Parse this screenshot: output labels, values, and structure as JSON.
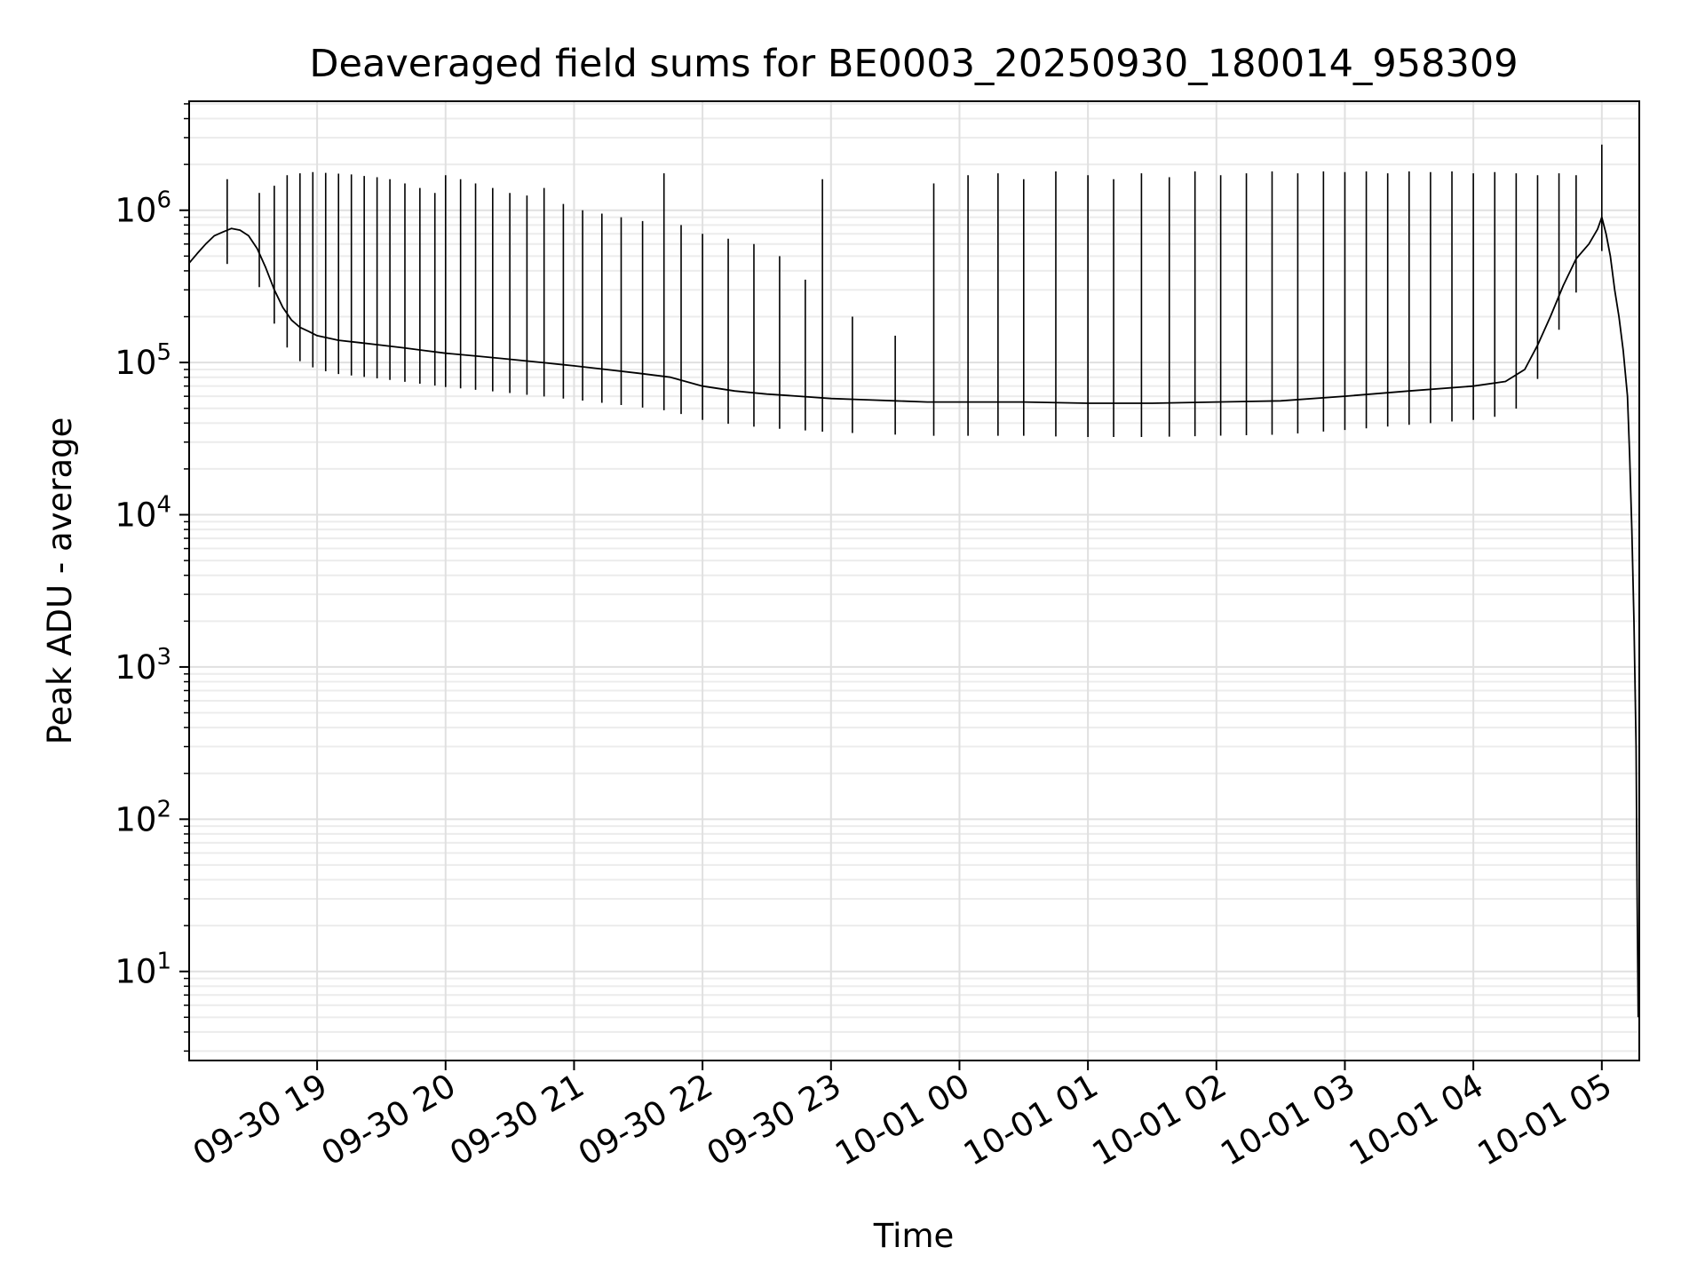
{
  "chart_data": {
    "type": "line",
    "title": "Deaveraged field sums for BE0003_20250930_180014_958309",
    "xlabel": "Time",
    "ylabel": "Peak ADU - average",
    "x_scale": "time",
    "y_scale": "log",
    "xlim": [
      "2025-09-30T18:00:14",
      "2025-10-01T05:17:30"
    ],
    "ylim": [
      2.6,
      5200000
    ],
    "grid": true,
    "legend": "none",
    "line_color": "#000000",
    "x_ticks": [
      {
        "value": "2025-09-30T19:00:00",
        "label": "09-30 19"
      },
      {
        "value": "2025-09-30T20:00:00",
        "label": "09-30 20"
      },
      {
        "value": "2025-09-30T21:00:00",
        "label": "09-30 21"
      },
      {
        "value": "2025-09-30T22:00:00",
        "label": "09-30 22"
      },
      {
        "value": "2025-09-30T23:00:00",
        "label": "09-30 23"
      },
      {
        "value": "2025-10-01T00:00:00",
        "label": "10-01 00"
      },
      {
        "value": "2025-10-01T01:00:00",
        "label": "10-01 01"
      },
      {
        "value": "2025-10-01T02:00:00",
        "label": "10-01 02"
      },
      {
        "value": "2025-10-01T03:00:00",
        "label": "10-01 03"
      },
      {
        "value": "2025-10-01T04:00:00",
        "label": "10-01 04"
      },
      {
        "value": "2025-10-01T05:00:00",
        "label": "10-01 05"
      }
    ],
    "y_ticks": [
      {
        "value": 10,
        "base": "10",
        "exp": "1"
      },
      {
        "value": 100,
        "base": "10",
        "exp": "2"
      },
      {
        "value": 1000,
        "base": "10",
        "exp": "3"
      },
      {
        "value": 10000,
        "base": "10",
        "exp": "4"
      },
      {
        "value": 100000,
        "base": "10",
        "exp": "5"
      },
      {
        "value": 1000000,
        "base": "10",
        "exp": "6"
      }
    ],
    "series": [
      {
        "x": [
          "2025-09-30T18:00:14",
          "2025-09-30T18:04:00",
          "2025-09-30T18:08:00",
          "2025-09-30T18:12:00",
          "2025-09-30T18:16:00",
          "2025-09-30T18:20:00",
          "2025-09-30T18:24:00",
          "2025-09-30T18:28:00",
          "2025-09-30T18:32:00",
          "2025-09-30T18:36:00",
          "2025-09-30T18:40:00",
          "2025-09-30T18:44:00",
          "2025-09-30T18:48:00",
          "2025-09-30T18:52:00",
          "2025-09-30T18:56:00",
          "2025-09-30T19:00:00",
          "2025-09-30T19:10:00",
          "2025-09-30T19:20:00",
          "2025-09-30T19:30:00",
          "2025-09-30T19:40:00",
          "2025-09-30T19:50:00",
          "2025-09-30T20:00:00",
          "2025-09-30T20:15:00",
          "2025-09-30T20:30:00",
          "2025-09-30T20:45:00",
          "2025-09-30T21:00:00",
          "2025-09-30T21:15:00",
          "2025-09-30T21:30:00",
          "2025-09-30T21:45:00",
          "2025-09-30T22:00:00",
          "2025-09-30T22:15:00",
          "2025-09-30T22:30:00",
          "2025-09-30T22:45:00",
          "2025-09-30T23:00:00",
          "2025-09-30T23:15:00",
          "2025-09-30T23:30:00",
          "2025-09-30T23:45:00",
          "2025-10-01T00:00:00",
          "2025-10-01T00:30:00",
          "2025-10-01T01:00:00",
          "2025-10-01T01:30:00",
          "2025-10-01T02:00:00",
          "2025-10-01T02:30:00",
          "2025-10-01T03:00:00",
          "2025-10-01T03:30:00",
          "2025-10-01T04:00:00",
          "2025-10-01T04:15:00",
          "2025-10-01T04:24:00",
          "2025-10-01T04:30:00",
          "2025-10-01T04:36:00",
          "2025-10-01T04:42:00",
          "2025-10-01T04:48:00",
          "2025-10-01T04:54:00",
          "2025-10-01T04:58:00",
          "2025-10-01T05:00:00",
          "2025-10-01T05:02:00",
          "2025-10-01T05:04:00",
          "2025-10-01T05:06:00",
          "2025-10-01T05:08:00",
          "2025-10-01T05:10:00",
          "2025-10-01T05:12:00",
          "2025-10-01T05:13:00",
          "2025-10-01T05:14:00",
          "2025-10-01T05:15:00",
          "2025-10-01T05:16:00",
          "2025-10-01T05:16:30",
          "2025-10-01T05:17:00"
        ],
        "y": [
          450000,
          520000,
          600000,
          680000,
          720000,
          760000,
          740000,
          680000,
          560000,
          420000,
          300000,
          230000,
          190000,
          170000,
          160000,
          150000,
          140000,
          135000,
          130000,
          125000,
          120000,
          115000,
          110000,
          105000,
          100000,
          95000,
          90000,
          85000,
          80000,
          70000,
          65000,
          62000,
          60000,
          58000,
          57000,
          56000,
          55000,
          55000,
          55000,
          54000,
          54000,
          55000,
          56000,
          60000,
          65000,
          70000,
          75000,
          90000,
          130000,
          200000,
          320000,
          480000,
          600000,
          750000,
          900000,
          700000,
          500000,
          300000,
          200000,
          120000,
          60000,
          25000,
          8000,
          2000,
          300,
          30,
          5
        ],
        "spikes": [
          {
            "x": "2025-09-30T18:18:00",
            "y": 1600000
          },
          {
            "x": "2025-09-30T18:33:00",
            "y": 1300000
          },
          {
            "x": "2025-09-30T18:40:00",
            "y": 1450000
          },
          {
            "x": "2025-09-30T18:46:00",
            "y": 1700000
          },
          {
            "x": "2025-09-30T18:52:00",
            "y": 1750000
          },
          {
            "x": "2025-09-30T18:58:00",
            "y": 1780000
          },
          {
            "x": "2025-09-30T19:04:00",
            "y": 1760000
          },
          {
            "x": "2025-09-30T19:10:00",
            "y": 1740000
          },
          {
            "x": "2025-09-30T19:16:00",
            "y": 1720000
          },
          {
            "x": "2025-09-30T19:22:00",
            "y": 1680000
          },
          {
            "x": "2025-09-30T19:28:00",
            "y": 1650000
          },
          {
            "x": "2025-09-30T19:34:00",
            "y": 1600000
          },
          {
            "x": "2025-09-30T19:41:00",
            "y": 1500000
          },
          {
            "x": "2025-09-30T19:48:00",
            "y": 1400000
          },
          {
            "x": "2025-09-30T19:55:00",
            "y": 1300000
          },
          {
            "x": "2025-09-30T20:00:00",
            "y": 1700000
          },
          {
            "x": "2025-09-30T20:07:00",
            "y": 1600000
          },
          {
            "x": "2025-09-30T20:14:00",
            "y": 1500000
          },
          {
            "x": "2025-09-30T20:22:00",
            "y": 1400000
          },
          {
            "x": "2025-09-30T20:30:00",
            "y": 1300000
          },
          {
            "x": "2025-09-30T20:38:00",
            "y": 1250000
          },
          {
            "x": "2025-09-30T20:46:00",
            "y": 1400000
          },
          {
            "x": "2025-09-30T20:55:00",
            "y": 1100000
          },
          {
            "x": "2025-09-30T21:04:00",
            "y": 1000000
          },
          {
            "x": "2025-09-30T21:13:00",
            "y": 950000
          },
          {
            "x": "2025-09-30T21:22:00",
            "y": 900000
          },
          {
            "x": "2025-09-30T21:32:00",
            "y": 850000
          },
          {
            "x": "2025-09-30T21:42:00",
            "y": 1750000
          },
          {
            "x": "2025-09-30T21:50:00",
            "y": 800000
          },
          {
            "x": "2025-09-30T22:00:00",
            "y": 700000
          },
          {
            "x": "2025-09-30T22:12:00",
            "y": 650000
          },
          {
            "x": "2025-09-30T22:24:00",
            "y": 600000
          },
          {
            "x": "2025-09-30T22:36:00",
            "y": 500000
          },
          {
            "x": "2025-09-30T22:48:00",
            "y": 350000
          },
          {
            "x": "2025-09-30T22:56:00",
            "y": 1600000
          },
          {
            "x": "2025-09-30T23:10:00",
            "y": 200000
          },
          {
            "x": "2025-09-30T23:30:00",
            "y": 150000
          },
          {
            "x": "2025-09-30T23:48:00",
            "y": 1500000
          },
          {
            "x": "2025-10-01T00:04:00",
            "y": 1700000
          },
          {
            "x": "2025-10-01T00:18:00",
            "y": 1750000
          },
          {
            "x": "2025-10-01T00:30:00",
            "y": 1600000
          },
          {
            "x": "2025-10-01T00:45:00",
            "y": 1800000
          },
          {
            "x": "2025-10-01T01:00:00",
            "y": 1700000
          },
          {
            "x": "2025-10-01T01:12:00",
            "y": 1600000
          },
          {
            "x": "2025-10-01T01:25:00",
            "y": 1750000
          },
          {
            "x": "2025-10-01T01:38:00",
            "y": 1650000
          },
          {
            "x": "2025-10-01T01:50:00",
            "y": 1800000
          },
          {
            "x": "2025-10-01T02:02:00",
            "y": 1700000
          },
          {
            "x": "2025-10-01T02:14:00",
            "y": 1750000
          },
          {
            "x": "2025-10-01T02:26:00",
            "y": 1800000
          },
          {
            "x": "2025-10-01T02:38:00",
            "y": 1750000
          },
          {
            "x": "2025-10-01T02:50:00",
            "y": 1800000
          },
          {
            "x": "2025-10-01T03:00:00",
            "y": 1780000
          },
          {
            "x": "2025-10-01T03:10:00",
            "y": 1800000
          },
          {
            "x": "2025-10-01T03:20:00",
            "y": 1750000
          },
          {
            "x": "2025-10-01T03:30:00",
            "y": 1800000
          },
          {
            "x": "2025-10-01T03:40:00",
            "y": 1780000
          },
          {
            "x": "2025-10-01T03:50:00",
            "y": 1800000
          },
          {
            "x": "2025-10-01T04:00:00",
            "y": 1750000
          },
          {
            "x": "2025-10-01T04:10:00",
            "y": 1780000
          },
          {
            "x": "2025-10-01T04:20:00",
            "y": 1750000
          },
          {
            "x": "2025-10-01T04:30:00",
            "y": 1700000
          },
          {
            "x": "2025-10-01T04:40:00",
            "y": 1750000
          },
          {
            "x": "2025-10-01T04:48:00",
            "y": 1700000
          },
          {
            "x": "2025-10-01T05:00:00",
            "y": 2700000
          }
        ]
      }
    ]
  }
}
